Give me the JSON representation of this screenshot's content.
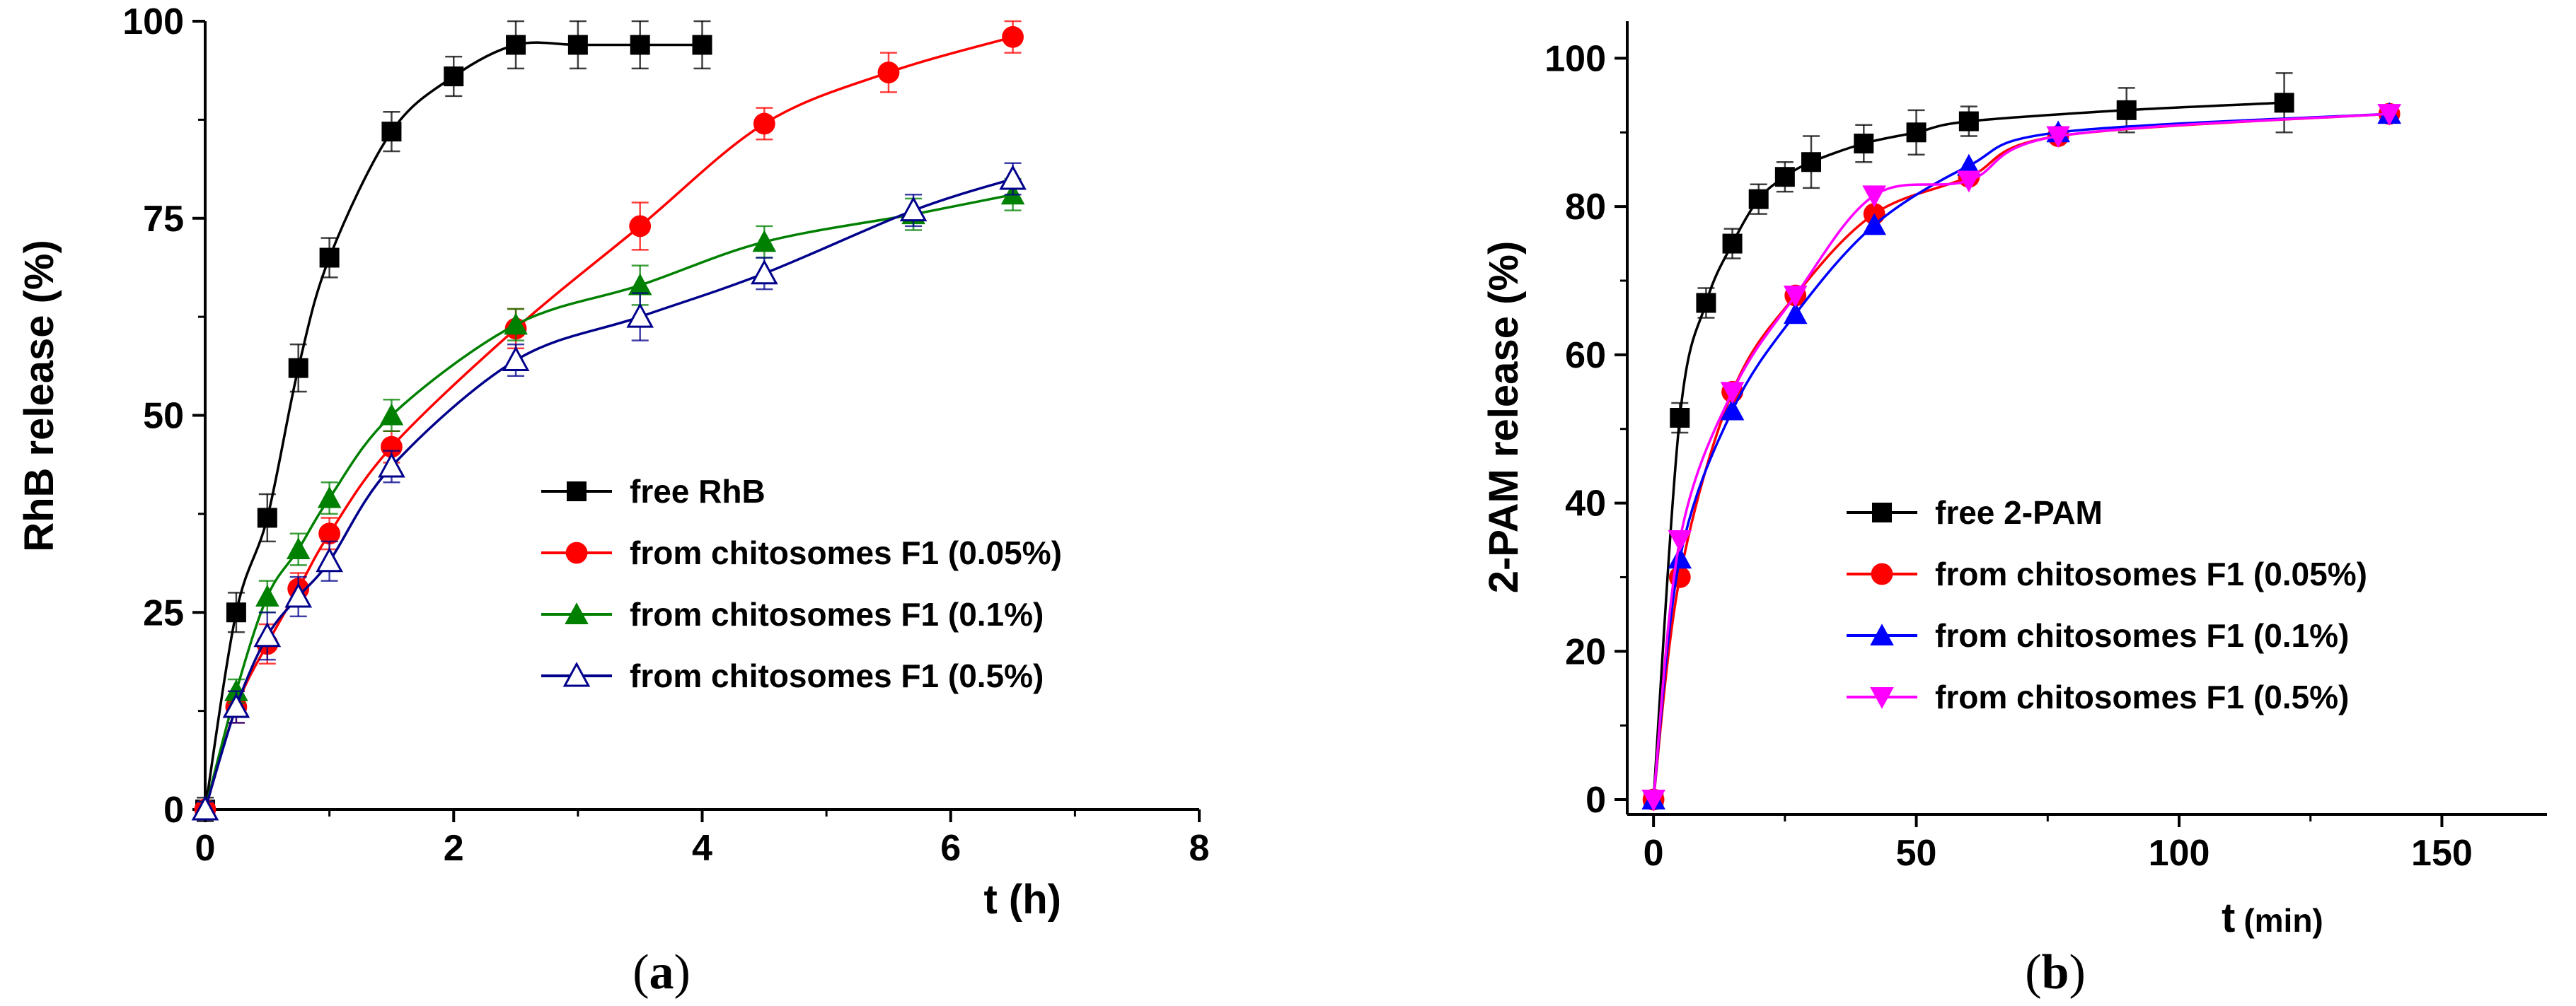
{
  "chart_data": [
    {
      "type": "line",
      "ylabel": "RhB release (%)",
      "xlabel": "t (h)",
      "caption_prefix": "(",
      "caption_letter": "a",
      "caption_suffix": ")",
      "xlim": [
        0,
        8
      ],
      "ylim": [
        0,
        100
      ],
      "xticks": [
        0,
        2,
        4,
        6,
        8
      ],
      "yticks": [
        0,
        25,
        50,
        75,
        100
      ],
      "legend_position": "bottom-right",
      "series": [
        {
          "name": "free RhB",
          "color": "#000000",
          "marker": "square",
          "x": [
            0,
            0.25,
            0.5,
            0.75,
            1,
            1.5,
            2,
            2.5,
            3,
            3.5,
            4
          ],
          "values": [
            0,
            25,
            37,
            56,
            70,
            86,
            93,
            97,
            97,
            97,
            97
          ],
          "err": [
            1.5,
            2.5,
            3,
            3,
            2.5,
            2.5,
            2.5,
            3,
            3,
            3,
            3
          ]
        },
        {
          "name": "from chitosomes F1 (0.05%)",
          "color": "#ff0000",
          "marker": "circle",
          "x": [
            0,
            0.25,
            0.5,
            0.75,
            1,
            1.5,
            2.5,
            3.5,
            4.5,
            5.5,
            6.5
          ],
          "values": [
            0,
            13,
            21,
            28,
            35,
            46,
            61,
            74,
            87,
            93.5,
            98
          ],
          "err": [
            1,
            2,
            2.5,
            2,
            2,
            2,
            2.5,
            3,
            2,
            2.5,
            2
          ]
        },
        {
          "name": "from chitosomes F1 (0.1%)",
          "color": "#008000",
          "marker": "triangle",
          "x": [
            0,
            0.25,
            0.5,
            0.75,
            1,
            1.5,
            2.5,
            3.5,
            4.5,
            5.7,
            6.5
          ],
          "values": [
            0,
            15,
            27,
            33,
            39.5,
            50,
            61.5,
            66.5,
            72,
            75.5,
            78
          ],
          "err": [
            1,
            1.5,
            2,
            2,
            2,
            2,
            2,
            2.5,
            2,
            2,
            2
          ]
        },
        {
          "name": "from chitosomes F1 (0.5%)",
          "color": "#00008b",
          "marker": "triangle-open",
          "x": [
            0,
            0.25,
            0.5,
            0.75,
            1,
            1.5,
            2.5,
            3.5,
            4.5,
            5.7,
            6.5
          ],
          "values": [
            0,
            13,
            22,
            27,
            31.5,
            43.5,
            57,
            62.5,
            68,
            76,
            80
          ],
          "err": [
            1,
            2,
            3,
            2.5,
            2.5,
            2,
            2,
            3,
            2,
            2,
            2
          ]
        }
      ]
    },
    {
      "type": "line",
      "ylabel": "2-PAM release (%)",
      "xlabel_main": "t",
      "xlabel_unit": "(min)",
      "caption_prefix": "(",
      "caption_letter": "b",
      "caption_suffix": ")",
      "xlim": [
        -5,
        170
      ],
      "ylim": [
        -2,
        105
      ],
      "xticks": [
        0,
        50,
        100,
        150
      ],
      "yticks": [
        0,
        20,
        40,
        60,
        80,
        100
      ],
      "legend_position": "bottom-right",
      "series": [
        {
          "name": "free 2-PAM",
          "color": "#000000",
          "marker": "square",
          "x": [
            0,
            5,
            10,
            15,
            20,
            25,
            30,
            40,
            50,
            60,
            90,
            120
          ],
          "values": [
            0,
            51.5,
            67,
            75,
            81,
            84,
            86,
            88.5,
            90,
            91.5,
            93,
            94
          ],
          "err": [
            1,
            2,
            2,
            2,
            2,
            2,
            3.5,
            2.5,
            3,
            2,
            3,
            4
          ]
        },
        {
          "name": "from chitosomes F1 (0.05%)",
          "color": "#ff0000",
          "marker": "circle",
          "x": [
            0,
            5,
            15,
            27,
            42,
            60,
            77,
            140
          ],
          "values": [
            0,
            30,
            55,
            68,
            79,
            84,
            89.5,
            92.5
          ],
          "err": [
            0,
            0,
            0,
            0,
            0,
            0,
            0,
            0
          ]
        },
        {
          "name": "from chitosomes F1 (0.1%)",
          "color": "#0000ff",
          "marker": "triangle",
          "x": [
            0,
            5,
            15,
            27,
            42,
            60,
            77,
            140
          ],
          "values": [
            0,
            32.5,
            52.5,
            65.5,
            77.5,
            85.5,
            90,
            92.5
          ],
          "err": [
            0,
            0,
            0,
            0,
            0,
            0,
            0,
            0
          ]
        },
        {
          "name": "from chitosomes F1 (0.5%)",
          "color": "#ff00ff",
          "marker": "triangle-down",
          "x": [
            0,
            5,
            15,
            27,
            42,
            60,
            77,
            140
          ],
          "values": [
            0,
            35,
            55,
            68,
            81.5,
            83.5,
            89.5,
            92.5
          ],
          "err": [
            0,
            0,
            0,
            0,
            0,
            0,
            0,
            0
          ]
        }
      ]
    }
  ]
}
